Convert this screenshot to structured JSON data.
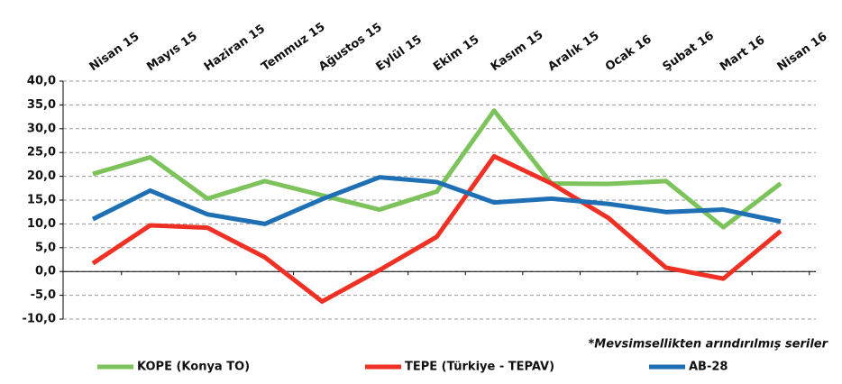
{
  "chart_data": {
    "type": "line",
    "categories": [
      "Nisan 15",
      "Mayıs 15",
      "Haziran 15",
      "Temmuz 15",
      "Ağustos 15",
      "Eylül 15",
      "Ekim 15",
      "Kasım 15",
      "Aralık 15",
      "Ocak 16",
      "Şubat 16",
      "Mart 16",
      "Nisan 16"
    ],
    "series": [
      {
        "name": "KOPE (Konya TO)",
        "color": "#7dc35b",
        "values": [
          20.5,
          24,
          15.3,
          19,
          16,
          13,
          16.8,
          33.8,
          18.5,
          18.4,
          19,
          9.3,
          18.5
        ]
      },
      {
        "name": "TEPE (Türkiye - TEPAV)",
        "color": "#ee3124",
        "values": [
          1.7,
          9.7,
          9.2,
          3,
          -6.3,
          0.3,
          7.3,
          24.2,
          18.5,
          11.2,
          0.8,
          -1.5,
          8.5
        ]
      },
      {
        "name": "AB-28",
        "color": "#1f6fb5",
        "values": [
          11,
          17,
          12,
          10,
          15.2,
          19.8,
          18.8,
          14.5,
          15.3,
          14.2,
          12.5,
          13,
          10.5
        ]
      }
    ],
    "ylim": [
      -10,
      40
    ],
    "yticks": [
      {
        "value": -10,
        "label": "-10,0"
      },
      {
        "value": -5,
        "label": "-5,0"
      },
      {
        "value": 0,
        "label": "0,0"
      },
      {
        "value": 5,
        "label": "5,0"
      },
      {
        "value": 10,
        "label": "10,0"
      },
      {
        "value": 15,
        "label": "15,0"
      },
      {
        "value": 20,
        "label": "20,0"
      },
      {
        "value": 25,
        "label": "25,0"
      },
      {
        "value": 30,
        "label": "30,0"
      },
      {
        "value": 35,
        "label": "35,0"
      },
      {
        "value": 40,
        "label": "40,0"
      }
    ],
    "grid": true,
    "annotation": "*Mevsimsellikten arındırılmış seriler"
  }
}
